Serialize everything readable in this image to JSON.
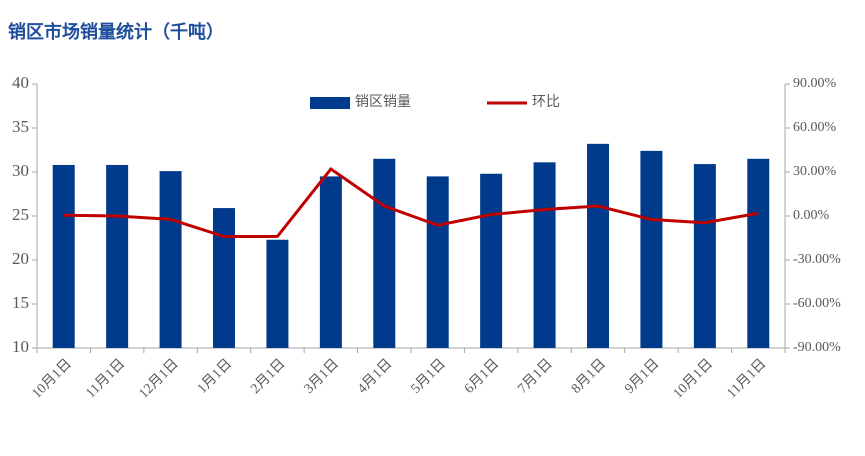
{
  "chart_data": {
    "type": "bar+line",
    "title": "销区市场销量统计（千吨）",
    "categories": [
      "10月1日",
      "11月1日",
      "12月1日",
      "1月1日",
      "2月1日",
      "3月1日",
      "4月1日",
      "5月1日",
      "6月1日",
      "7月1日",
      "8月1日",
      "9月1日",
      "10月1日",
      "11月1日"
    ],
    "series": [
      {
        "name": "销区销量",
        "color": "#003a8c",
        "type": "bar",
        "axis": "y",
        "values": [
          30.8,
          30.8,
          30.1,
          25.9,
          22.3,
          29.5,
          31.5,
          29.5,
          29.8,
          31.1,
          33.2,
          32.4,
          30.9,
          31.5
        ]
      },
      {
        "name": "环比",
        "color": "#c00000",
        "type": "line",
        "axis": "y2",
        "values": [
          0.5,
          0,
          -2.3,
          -14,
          -13.9,
          32,
          6.8,
          -6.3,
          1,
          4.4,
          6.8,
          -2.4,
          -4.6,
          1.9
        ]
      }
    ],
    "ylim": [
      10,
      40
    ],
    "yticks": [
      10,
      15,
      20,
      25,
      30,
      35,
      40
    ],
    "y2lim": [
      -90,
      90
    ],
    "y2ticks": [
      {
        "value": -90,
        "label": "-90.00%"
      },
      {
        "value": -60,
        "label": "-60.00%"
      },
      {
        "value": -30,
        "label": "-30.00%"
      },
      {
        "value": 0,
        "label": "0.00%"
      },
      {
        "value": 30,
        "label": "30.00%"
      },
      {
        "value": 60,
        "label": "60.00%"
      },
      {
        "value": 90,
        "label": "90.00%"
      }
    ],
    "grid": false,
    "legend": "top"
  }
}
